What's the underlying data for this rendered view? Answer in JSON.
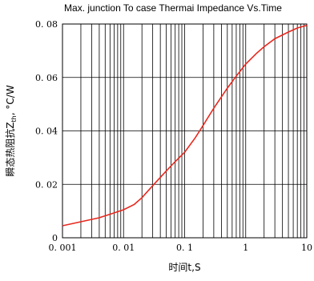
{
  "chart_data": {
    "type": "line",
    "title": "Max. junction To case Thermai Impedance Vs.Time",
    "xlabel": "时间t,S",
    "ylabel_prefix": "瞬态热阻抗Z",
    "ylabel_sub": "th",
    "ylabel_suffix": ", °C/W",
    "x_scale": "log",
    "xlim": [
      0.001,
      10
    ],
    "ylim": [
      0,
      0.08
    ],
    "x_ticks": [
      0.001,
      0.01,
      0.1,
      1,
      10
    ],
    "x_tick_labels": [
      "0. 001",
      "0. 01",
      "0. 1",
      "1",
      "10"
    ],
    "y_ticks": [
      0,
      0.02,
      0.04,
      0.06,
      0.08
    ],
    "y_tick_labels": [
      "0",
      "0. 02",
      "0. 04",
      "0. 06",
      "0. 08"
    ],
    "grid": true,
    "series_color": "#e8281e",
    "series": [
      {
        "x": [
          0.001,
          0.002,
          0.004,
          0.006,
          0.01,
          0.015,
          0.02,
          0.03,
          0.05,
          0.07,
          0.1,
          0.15,
          0.2,
          0.3,
          0.5,
          0.7,
          1,
          1.5,
          2,
          3,
          5,
          7,
          10
        ],
        "values": [
          0.0045,
          0.006,
          0.0075,
          0.0088,
          0.0105,
          0.0125,
          0.015,
          0.0195,
          0.025,
          0.0285,
          0.032,
          0.0375,
          0.042,
          0.0485,
          0.056,
          0.0605,
          0.065,
          0.069,
          0.0715,
          0.0745,
          0.077,
          0.0785,
          0.0795
        ]
      }
    ]
  }
}
